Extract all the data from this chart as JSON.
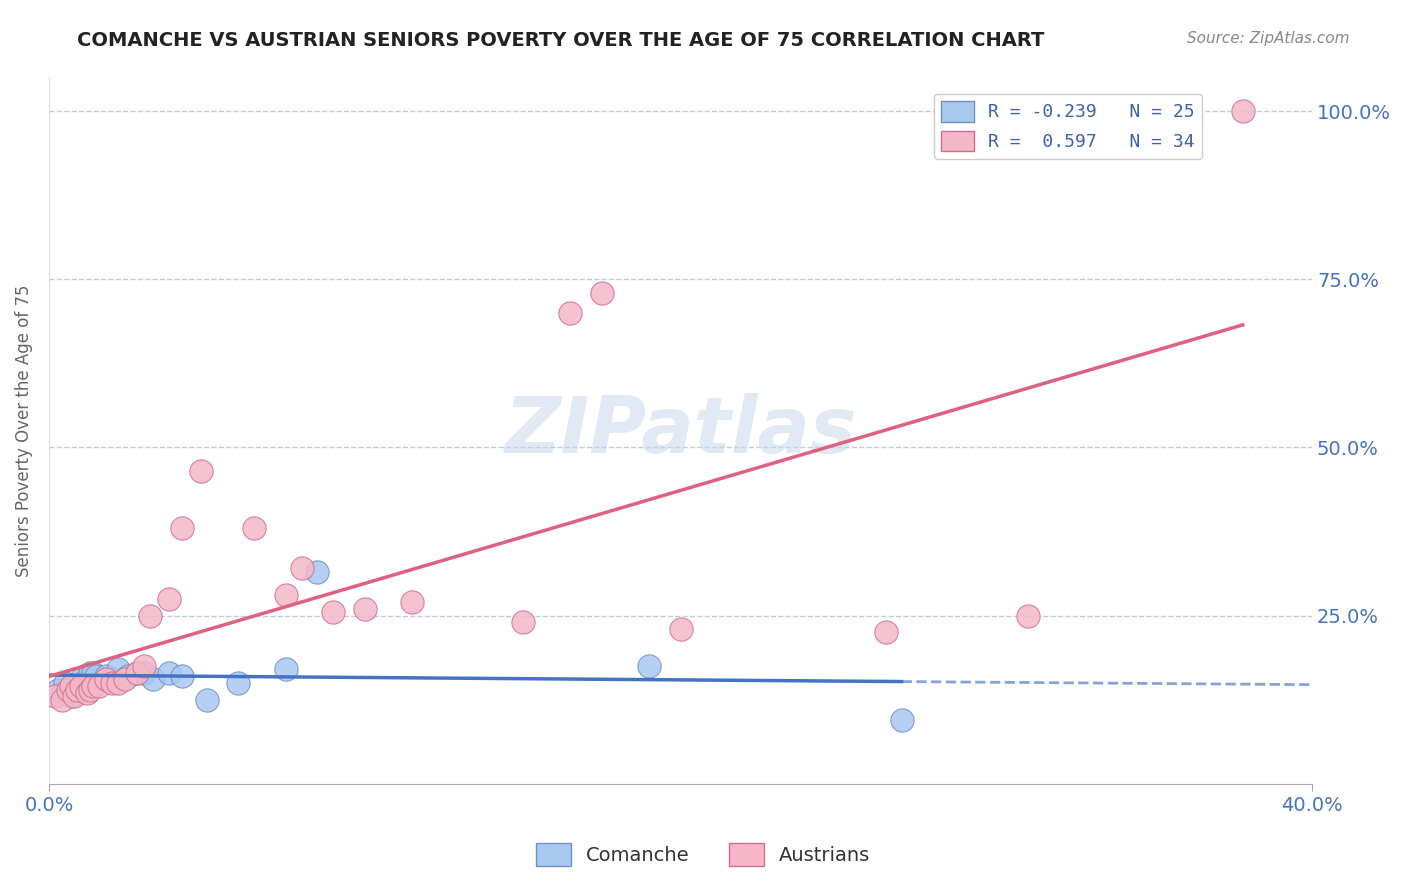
{
  "title": "COMANCHE VS AUSTRIAN SENIORS POVERTY OVER THE AGE OF 75 CORRELATION CHART",
  "source_text": "Source: ZipAtlas.com",
  "ylabel": "Seniors Poverty Over the Age of 75",
  "x_min": 0.0,
  "x_max": 0.4,
  "y_min": 0.0,
  "y_max": 1.05,
  "x_ticks": [
    0.0,
    0.4
  ],
  "x_tick_labels": [
    "0.0%",
    "40.0%"
  ],
  "y_ticks": [
    0.25,
    0.5,
    0.75,
    1.0
  ],
  "y_tick_labels": [
    "25.0%",
    "50.0%",
    "75.0%",
    "100.0%"
  ],
  "comanche_R": -0.239,
  "comanche_N": 25,
  "austrians_R": 0.597,
  "austrians_N": 34,
  "comanche_color": "#a8c8f0",
  "austrians_color": "#f4b8c8",
  "comanche_edge_color": "#7090c0",
  "austrians_edge_color": "#d07090",
  "comanche_line_color": "#4472c4",
  "austrians_line_color": "#e06080",
  "legend_comanche_label": "R = -0.239   N = 25",
  "legend_austrians_label": "R =  0.597   N = 34",
  "watermark": "ZIPatlas",
  "comanche_x": [
    0.003,
    0.005,
    0.007,
    0.008,
    0.01,
    0.01,
    0.012,
    0.013,
    0.014,
    0.015,
    0.018,
    0.02,
    0.022,
    0.025,
    0.028,
    0.03,
    0.033,
    0.038,
    0.042,
    0.05,
    0.06,
    0.075,
    0.085,
    0.19,
    0.27
  ],
  "comanche_y": [
    0.14,
    0.15,
    0.13,
    0.145,
    0.15,
    0.155,
    0.155,
    0.165,
    0.165,
    0.16,
    0.16,
    0.155,
    0.17,
    0.16,
    0.165,
    0.165,
    0.155,
    0.165,
    0.16,
    0.125,
    0.15,
    0.17,
    0.315,
    0.175,
    0.095
  ],
  "austrians_x": [
    0.002,
    0.004,
    0.006,
    0.007,
    0.008,
    0.009,
    0.01,
    0.012,
    0.013,
    0.014,
    0.016,
    0.018,
    0.02,
    0.022,
    0.024,
    0.028,
    0.03,
    0.032,
    0.038,
    0.042,
    0.048,
    0.065,
    0.075,
    0.08,
    0.09,
    0.1,
    0.115,
    0.15,
    0.165,
    0.175,
    0.2,
    0.265,
    0.31,
    0.378
  ],
  "austrians_y": [
    0.13,
    0.125,
    0.14,
    0.145,
    0.13,
    0.14,
    0.145,
    0.135,
    0.14,
    0.145,
    0.145,
    0.155,
    0.15,
    0.15,
    0.155,
    0.165,
    0.175,
    0.25,
    0.275,
    0.38,
    0.465,
    0.38,
    0.28,
    0.32,
    0.255,
    0.26,
    0.27,
    0.24,
    0.7,
    0.73,
    0.23,
    0.225,
    0.25,
    1.0
  ],
  "background_color": "#ffffff",
  "grid_color": "#c0cce0",
  "title_color": "#222222",
  "tick_color": "#4472c4"
}
